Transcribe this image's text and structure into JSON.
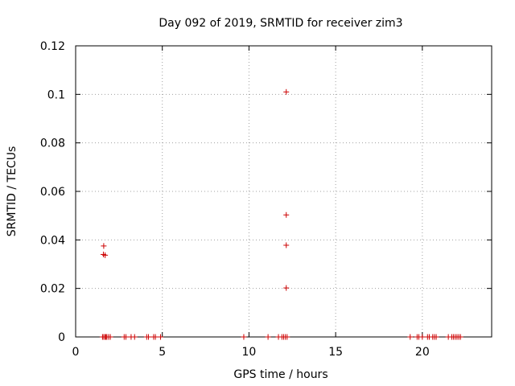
{
  "chart_data": {
    "type": "scatter",
    "title": "Day 092 of 2019, SRMTID for receiver zim3",
    "xlabel": "GPS time / hours",
    "ylabel": "SRMTID / TECUs",
    "xlim": [
      0,
      24
    ],
    "ylim": [
      0,
      0.12
    ],
    "xticks": [
      0,
      5,
      10,
      15,
      20
    ],
    "xtick_labels": [
      "0",
      "5",
      "10",
      "15",
      "20"
    ],
    "yticks": [
      0,
      0.02,
      0.04,
      0.06,
      0.08,
      0.1,
      0.12
    ],
    "ytick_labels": [
      "0",
      "0.02",
      "0.04",
      "0.06",
      "0.08",
      "0.1",
      "0.12"
    ],
    "grid": true,
    "marker": "plus",
    "color": "#cc0000",
    "series": [
      {
        "name": "zim3",
        "points": [
          [
            1.55,
            0.0
          ],
          [
            1.62,
            0.0
          ],
          [
            1.7,
            0.0
          ],
          [
            1.75,
            0.0
          ],
          [
            1.8,
            0.0
          ],
          [
            1.9,
            0.0
          ],
          [
            2.0,
            0.0
          ],
          [
            2.8,
            0.0
          ],
          [
            2.9,
            0.0
          ],
          [
            3.2,
            0.0
          ],
          [
            3.4,
            0.0
          ],
          [
            4.1,
            0.0
          ],
          [
            4.2,
            0.0
          ],
          [
            4.5,
            0.0
          ],
          [
            4.6,
            0.0
          ],
          [
            4.9,
            0.0
          ],
          [
            9.7,
            0.0
          ],
          [
            11.1,
            0.0
          ],
          [
            11.7,
            0.0
          ],
          [
            11.9,
            0.0
          ],
          [
            12.0,
            0.0
          ],
          [
            12.1,
            0.0
          ],
          [
            12.2,
            0.0
          ],
          [
            19.3,
            0.0
          ],
          [
            19.7,
            0.0
          ],
          [
            19.8,
            0.0
          ],
          [
            20.0,
            0.0
          ],
          [
            20.3,
            0.0
          ],
          [
            20.4,
            0.0
          ],
          [
            20.6,
            0.0
          ],
          [
            20.7,
            0.0
          ],
          [
            20.8,
            0.0
          ],
          [
            21.5,
            0.0
          ],
          [
            21.7,
            0.0
          ],
          [
            21.8,
            0.0
          ],
          [
            21.9,
            0.0
          ],
          [
            22.0,
            0.0
          ],
          [
            22.1,
            0.0
          ],
          [
            22.2,
            0.0
          ],
          [
            1.62,
            0.0375
          ],
          [
            1.6,
            0.034
          ],
          [
            1.7,
            0.0337
          ],
          [
            12.15,
            0.101
          ],
          [
            12.15,
            0.0503
          ],
          [
            12.15,
            0.0378
          ],
          [
            12.15,
            0.0202
          ]
        ]
      }
    ]
  }
}
